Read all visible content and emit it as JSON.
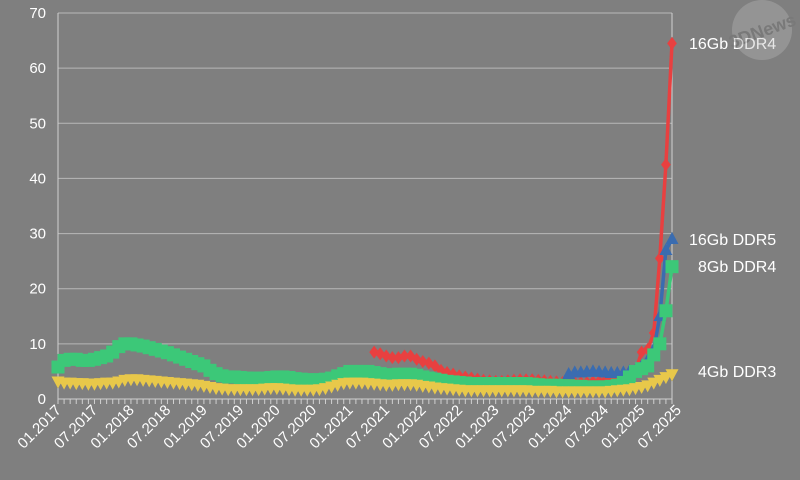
{
  "chart_data": {
    "type": "line",
    "ylim": [
      0,
      70
    ],
    "yticks": [
      0,
      10,
      20,
      30,
      40,
      50,
      60,
      70
    ],
    "xlabels": [
      "01.2017",
      "07.2017",
      "01.2018",
      "07.2018",
      "01.2019",
      "07.2019",
      "01.2020",
      "07.2020",
      "01.2021",
      "07.2021",
      "01.2022",
      "07.2022",
      "01.2023",
      "07.2023",
      "01.2024",
      "07.2024",
      "01.2025",
      "07.2025"
    ],
    "x_start": "2017-01",
    "grid": true,
    "legend": "line-end labels",
    "watermark": "3DNews",
    "series": [
      {
        "name": "16Gb DDR4",
        "color": "#e84040",
        "marker": "diamond",
        "points": [
          [
            52,
            8.5
          ],
          [
            53,
            8.2
          ],
          [
            54,
            7.8
          ],
          [
            55,
            7.5
          ],
          [
            56,
            7.5
          ],
          [
            57,
            7.8
          ],
          [
            58,
            7.8
          ],
          [
            59,
            7.2
          ],
          [
            60,
            6.8
          ],
          [
            61,
            6.5
          ],
          [
            62,
            6.0
          ],
          [
            63,
            5.2
          ],
          [
            64,
            4.8
          ],
          [
            65,
            4.5
          ],
          [
            66,
            4.2
          ],
          [
            67,
            4.0
          ],
          [
            68,
            3.8
          ],
          [
            69,
            3.6
          ],
          [
            70,
            3.4
          ],
          [
            71,
            3.3
          ],
          [
            72,
            3.2
          ],
          [
            73,
            3.2
          ],
          [
            74,
            3.3
          ],
          [
            75,
            3.4
          ],
          [
            76,
            3.5
          ],
          [
            77,
            3.5
          ],
          [
            78,
            3.5
          ],
          [
            79,
            3.4
          ],
          [
            80,
            3.3
          ],
          [
            81,
            3.2
          ],
          [
            82,
            3.1
          ],
          [
            83,
            3.0
          ],
          [
            84,
            3.0
          ],
          [
            85,
            3.0
          ],
          [
            86,
            3.0
          ],
          [
            87,
            3.0
          ],
          [
            88,
            3.1
          ],
          [
            89,
            3.2
          ],
          [
            90,
            3.3
          ],
          [
            91,
            3.3
          ],
          [
            92,
            3.4
          ],
          [
            93,
            3.5
          ],
          [
            94,
            4.0
          ],
          [
            95,
            5.0
          ],
          [
            96,
            8.5
          ],
          [
            97,
            9.0
          ],
          [
            98,
            12.0
          ],
          [
            99,
            25.5
          ],
          [
            100,
            42.5
          ],
          [
            101,
            64.5
          ]
        ]
      },
      {
        "name": "16Gb DDR5",
        "color": "#3a6cb0",
        "marker": "triangle",
        "points": [
          [
            84,
            4.5
          ],
          [
            85,
            4.8
          ],
          [
            86,
            4.8
          ],
          [
            87,
            4.9
          ],
          [
            88,
            5.0
          ],
          [
            89,
            4.9
          ],
          [
            90,
            4.8
          ],
          [
            91,
            4.7
          ],
          [
            92,
            4.7
          ],
          [
            93,
            4.8
          ],
          [
            94,
            5.0
          ],
          [
            95,
            5.2
          ],
          [
            96,
            6.0
          ],
          [
            97,
            7.0
          ],
          [
            98,
            9.0
          ],
          [
            99,
            15.0
          ],
          [
            100,
            27.0
          ],
          [
            101,
            29.0
          ]
        ]
      },
      {
        "name": "8Gb DDR4",
        "color": "#3cc878",
        "marker": "square",
        "points": [
          [
            0,
            5.8
          ],
          [
            1,
            7.0
          ],
          [
            2,
            7.2
          ],
          [
            3,
            7.2
          ],
          [
            4,
            7.0
          ],
          [
            5,
            7.0
          ],
          [
            6,
            7.2
          ],
          [
            7,
            7.5
          ],
          [
            8,
            7.8
          ],
          [
            9,
            8.5
          ],
          [
            10,
            9.5
          ],
          [
            11,
            10.0
          ],
          [
            12,
            10.0
          ],
          [
            13,
            9.8
          ],
          [
            14,
            9.6
          ],
          [
            15,
            9.3
          ],
          [
            16,
            9.0
          ],
          [
            17,
            8.7
          ],
          [
            18,
            8.4
          ],
          [
            19,
            8.0
          ],
          [
            20,
            7.6
          ],
          [
            21,
            7.2
          ],
          [
            22,
            6.8
          ],
          [
            23,
            6.4
          ],
          [
            24,
            6.0
          ],
          [
            25,
            5.2
          ],
          [
            26,
            4.6
          ],
          [
            27,
            4.2
          ],
          [
            28,
            4.0
          ],
          [
            29,
            4.0
          ],
          [
            30,
            3.9
          ],
          [
            31,
            3.8
          ],
          [
            32,
            3.8
          ],
          [
            33,
            3.7
          ],
          [
            34,
            3.8
          ],
          [
            35,
            3.9
          ],
          [
            36,
            4.0
          ],
          [
            37,
            4.0
          ],
          [
            38,
            3.9
          ],
          [
            39,
            3.7
          ],
          [
            40,
            3.6
          ],
          [
            41,
            3.5
          ],
          [
            42,
            3.5
          ],
          [
            43,
            3.5
          ],
          [
            44,
            3.6
          ],
          [
            45,
            3.8
          ],
          [
            46,
            4.2
          ],
          [
            47,
            4.6
          ],
          [
            48,
            5.0
          ],
          [
            49,
            5.0
          ],
          [
            50,
            5.0
          ],
          [
            51,
            5.0
          ],
          [
            52,
            4.8
          ],
          [
            53,
            4.6
          ],
          [
            54,
            4.4
          ],
          [
            55,
            4.4
          ],
          [
            56,
            4.5
          ],
          [
            57,
            4.5
          ],
          [
            58,
            4.5
          ],
          [
            59,
            4.3
          ],
          [
            60,
            4.0
          ],
          [
            61,
            3.8
          ],
          [
            62,
            3.6
          ],
          [
            63,
            3.4
          ],
          [
            64,
            3.2
          ],
          [
            65,
            3.1
          ],
          [
            66,
            3.0
          ],
          [
            67,
            2.9
          ],
          [
            68,
            2.8
          ],
          [
            69,
            2.8
          ],
          [
            70,
            2.8
          ],
          [
            71,
            2.8
          ],
          [
            72,
            2.8
          ],
          [
            73,
            2.8
          ],
          [
            74,
            2.8
          ],
          [
            75,
            2.8
          ],
          [
            76,
            2.8
          ],
          [
            77,
            2.8
          ],
          [
            78,
            2.7
          ],
          [
            79,
            2.6
          ],
          [
            80,
            2.5
          ],
          [
            81,
            2.5
          ],
          [
            82,
            2.5
          ],
          [
            83,
            2.4
          ],
          [
            84,
            2.4
          ],
          [
            85,
            2.3
          ],
          [
            86,
            2.3
          ],
          [
            87,
            2.2
          ],
          [
            88,
            2.2
          ],
          [
            89,
            2.2
          ],
          [
            90,
            2.2
          ],
          [
            91,
            2.3
          ],
          [
            92,
            2.5
          ],
          [
            93,
            3.0
          ],
          [
            94,
            4.0
          ],
          [
            95,
            5.0
          ],
          [
            96,
            5.5
          ],
          [
            97,
            6.0
          ],
          [
            98,
            8.0
          ],
          [
            99,
            10.0
          ],
          [
            100,
            16.0
          ],
          [
            101,
            24.0
          ]
        ]
      },
      {
        "name": "4Gb DDR3",
        "color": "#e8c84a",
        "marker": "triangle-down",
        "points": [
          [
            0,
            3.2
          ],
          [
            1,
            3.0
          ],
          [
            2,
            3.0
          ],
          [
            3,
            2.9
          ],
          [
            4,
            2.9
          ],
          [
            5,
            2.8
          ],
          [
            6,
            2.8
          ],
          [
            7,
            2.9
          ],
          [
            8,
            3.0
          ],
          [
            9,
            3.0
          ],
          [
            10,
            3.2
          ],
          [
            11,
            3.5
          ],
          [
            12,
            3.6
          ],
          [
            13,
            3.6
          ],
          [
            14,
            3.5
          ],
          [
            15,
            3.4
          ],
          [
            16,
            3.3
          ],
          [
            17,
            3.2
          ],
          [
            18,
            3.1
          ],
          [
            19,
            3.0
          ],
          [
            20,
            2.9
          ],
          [
            21,
            2.8
          ],
          [
            22,
            2.7
          ],
          [
            23,
            2.6
          ],
          [
            24,
            2.4
          ],
          [
            25,
            2.2
          ],
          [
            26,
            2.0
          ],
          [
            27,
            1.9
          ],
          [
            28,
            1.8
          ],
          [
            29,
            1.8
          ],
          [
            30,
            1.8
          ],
          [
            31,
            1.8
          ],
          [
            32,
            1.8
          ],
          [
            33,
            1.8
          ],
          [
            34,
            1.9
          ],
          [
            35,
            2.0
          ],
          [
            36,
            2.0
          ],
          [
            37,
            1.9
          ],
          [
            38,
            1.8
          ],
          [
            39,
            1.7
          ],
          [
            40,
            1.7
          ],
          [
            41,
            1.7
          ],
          [
            42,
            1.7
          ],
          [
            43,
            1.8
          ],
          [
            44,
            2.0
          ],
          [
            45,
            2.3
          ],
          [
            46,
            2.6
          ],
          [
            47,
            2.9
          ],
          [
            48,
            3.0
          ],
          [
            49,
            3.0
          ],
          [
            50,
            3.0
          ],
          [
            51,
            2.9
          ],
          [
            52,
            2.8
          ],
          [
            53,
            2.7
          ],
          [
            54,
            2.6
          ],
          [
            55,
            2.6
          ],
          [
            56,
            2.7
          ],
          [
            57,
            2.7
          ],
          [
            58,
            2.7
          ],
          [
            59,
            2.6
          ],
          [
            60,
            2.4
          ],
          [
            61,
            2.3
          ],
          [
            62,
            2.1
          ],
          [
            63,
            2.0
          ],
          [
            64,
            1.9
          ],
          [
            65,
            1.8
          ],
          [
            66,
            1.7
          ],
          [
            67,
            1.6
          ],
          [
            68,
            1.6
          ],
          [
            69,
            1.6
          ],
          [
            70,
            1.6
          ],
          [
            71,
            1.6
          ],
          [
            72,
            1.6
          ],
          [
            73,
            1.6
          ],
          [
            74,
            1.6
          ],
          [
            75,
            1.6
          ],
          [
            76,
            1.6
          ],
          [
            77,
            1.6
          ],
          [
            78,
            1.5
          ],
          [
            79,
            1.5
          ],
          [
            80,
            1.5
          ],
          [
            81,
            1.5
          ],
          [
            82,
            1.4
          ],
          [
            83,
            1.4
          ],
          [
            84,
            1.4
          ],
          [
            85,
            1.4
          ],
          [
            86,
            1.4
          ],
          [
            87,
            1.4
          ],
          [
            88,
            1.4
          ],
          [
            89,
            1.4
          ],
          [
            90,
            1.4
          ],
          [
            91,
            1.5
          ],
          [
            92,
            1.6
          ],
          [
            93,
            1.7
          ],
          [
            94,
            1.8
          ],
          [
            95,
            2.0
          ],
          [
            96,
            2.2
          ],
          [
            97,
            2.5
          ],
          [
            98,
            3.0
          ],
          [
            99,
            3.5
          ],
          [
            100,
            4.0
          ],
          [
            101,
            4.5
          ]
        ]
      }
    ]
  }
}
